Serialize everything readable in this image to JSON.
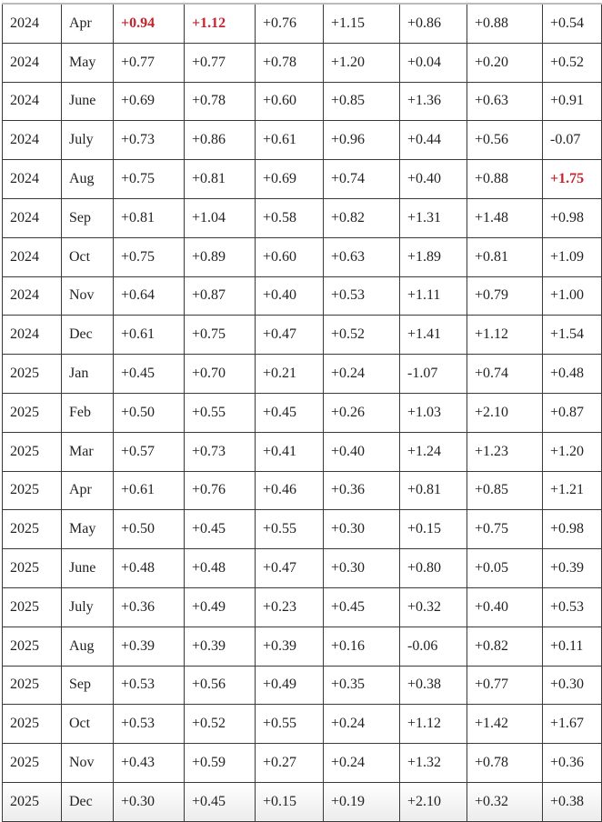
{
  "table": {
    "highlight_color": "#c8232c",
    "rows": [
      {
        "year": "2024",
        "month": "Apr",
        "values": [
          "+0.94",
          "+1.12",
          "+0.76",
          "+1.15",
          "+0.86",
          "+0.88",
          "+0.54"
        ],
        "highlighted": [
          0,
          1
        ]
      },
      {
        "year": "2024",
        "month": "May",
        "values": [
          "+0.77",
          "+0.77",
          "+0.78",
          "+1.20",
          "+0.04",
          "+0.20",
          "+0.52"
        ],
        "highlighted": []
      },
      {
        "year": "2024",
        "month": "June",
        "values": [
          "+0.69",
          "+0.78",
          "+0.60",
          "+0.85",
          "+1.36",
          "+0.63",
          "+0.91"
        ],
        "highlighted": []
      },
      {
        "year": "2024",
        "month": "July",
        "values": [
          "+0.73",
          "+0.86",
          "+0.61",
          "+0.96",
          "+0.44",
          "+0.56",
          "-0.07"
        ],
        "highlighted": []
      },
      {
        "year": "2024",
        "month": "Aug",
        "values": [
          "+0.75",
          "+0.81",
          "+0.69",
          "+0.74",
          "+0.40",
          "+0.88",
          "+1.75"
        ],
        "highlighted": [
          6
        ]
      },
      {
        "year": "2024",
        "month": "Sep",
        "values": [
          "+0.81",
          "+1.04",
          "+0.58",
          "+0.82",
          "+1.31",
          "+1.48",
          "+0.98"
        ],
        "highlighted": []
      },
      {
        "year": "2024",
        "month": "Oct",
        "values": [
          "+0.75",
          "+0.89",
          "+0.60",
          "+0.63",
          "+1.89",
          "+0.81",
          "+1.09"
        ],
        "highlighted": []
      },
      {
        "year": "2024",
        "month": "Nov",
        "values": [
          "+0.64",
          "+0.87",
          "+0.40",
          "+0.53",
          "+1.11",
          "+0.79",
          "+1.00"
        ],
        "highlighted": []
      },
      {
        "year": "2024",
        "month": "Dec",
        "values": [
          "+0.61",
          "+0.75",
          "+0.47",
          "+0.52",
          "+1.41",
          "+1.12",
          "+1.54"
        ],
        "highlighted": []
      },
      {
        "year": "2025",
        "month": "Jan",
        "values": [
          "+0.45",
          "+0.70",
          "+0.21",
          "+0.24",
          "-1.07",
          "+0.74",
          "+0.48"
        ],
        "highlighted": []
      },
      {
        "year": "2025",
        "month": "Feb",
        "values": [
          "+0.50",
          "+0.55",
          "+0.45",
          "+0.26",
          "+1.03",
          "+2.10",
          "+0.87"
        ],
        "highlighted": []
      },
      {
        "year": "2025",
        "month": "Mar",
        "values": [
          "+0.57",
          "+0.73",
          "+0.41",
          "+0.40",
          "+1.24",
          "+1.23",
          "+1.20"
        ],
        "highlighted": []
      },
      {
        "year": "2025",
        "month": "Apr",
        "values": [
          "+0.61",
          "+0.76",
          "+0.46",
          "+0.36",
          "+0.81",
          "+0.85",
          "+1.21"
        ],
        "highlighted": []
      },
      {
        "year": "2025",
        "month": "May",
        "values": [
          "+0.50",
          "+0.45",
          "+0.55",
          "+0.30",
          "+0.15",
          "+0.75",
          "+0.98"
        ],
        "highlighted": []
      },
      {
        "year": "2025",
        "month": "June",
        "values": [
          "+0.48",
          "+0.48",
          "+0.47",
          "+0.30",
          "+0.80",
          "+0.05",
          "+0.39"
        ],
        "highlighted": []
      },
      {
        "year": "2025",
        "month": "July",
        "values": [
          "+0.36",
          "+0.49",
          "+0.23",
          "+0.45",
          "+0.32",
          "+0.40",
          "+0.53"
        ],
        "highlighted": []
      },
      {
        "year": "2025",
        "month": "Aug",
        "values": [
          "+0.39",
          "+0.39",
          "+0.39",
          "+0.16",
          "-0.06",
          "+0.82",
          "+0.11"
        ],
        "highlighted": []
      },
      {
        "year": "2025",
        "month": "Sep",
        "values": [
          "+0.53",
          "+0.56",
          "+0.49",
          "+0.35",
          "+0.38",
          "+0.77",
          "+0.30"
        ],
        "highlighted": []
      },
      {
        "year": "2025",
        "month": "Oct",
        "values": [
          "+0.53",
          "+0.52",
          "+0.55",
          "+0.24",
          "+1.12",
          "+1.42",
          "+1.67"
        ],
        "highlighted": []
      },
      {
        "year": "2025",
        "month": "Nov",
        "values": [
          "+0.43",
          "+0.59",
          "+0.27",
          "+0.24",
          "+1.32",
          "+0.78",
          "+0.36"
        ],
        "highlighted": []
      },
      {
        "year": "2025",
        "month": "Dec",
        "values": [
          "+0.30",
          "+0.45",
          "+0.15",
          "+0.19",
          "+2.10",
          "+0.32",
          "+0.38"
        ],
        "highlighted": []
      }
    ]
  }
}
